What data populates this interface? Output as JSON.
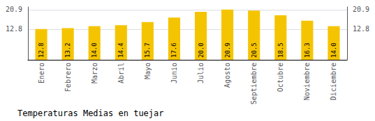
{
  "chart_data": {
    "type": "bar",
    "title": "Temperaturas Medias en tuejar",
    "categories": [
      "Enero",
      "Febrero",
      "Marzo",
      "Abril",
      "Mayo",
      "Junio",
      "Julio",
      "Agosto",
      "Septiembre",
      "Octubre",
      "Noviembre",
      "Diciembre"
    ],
    "values": [
      12.8,
      13.2,
      14.0,
      14.4,
      15.7,
      17.6,
      20.0,
      20.9,
      20.5,
      18.5,
      16.3,
      14.0
    ],
    "value_labels": [
      "12.8",
      "13.2",
      "14.0",
      "14.4",
      "15.7",
      "17.6",
      "20.0",
      "20.9",
      "20.5",
      "18.5",
      "16.3",
      "14.0"
    ],
    "color": "#F5C400",
    "ylim": [
      0,
      22.0
    ],
    "yticks": [
      12.8,
      20.9
    ],
    "grid": true,
    "data_labels": true
  }
}
